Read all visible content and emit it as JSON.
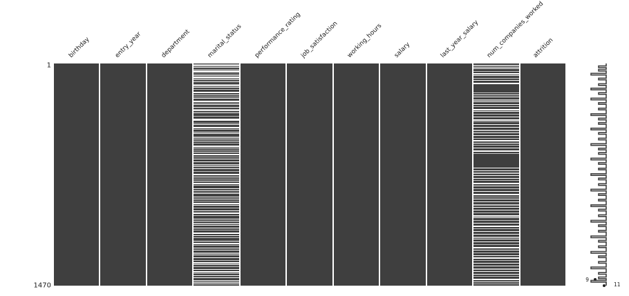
{
  "chart_data": {
    "type": "heatmap",
    "subtype": "missing-data-matrix",
    "title": "",
    "n_rows": 1470,
    "row_axis": {
      "top_tick": "1",
      "bottom_tick": "1470"
    },
    "columns": [
      "birthday",
      "entry_year",
      "department",
      "marital_status",
      "performance_rating",
      "job_satisfaction",
      "working_hours",
      "salary",
      "last_year_salary",
      "num_companies_worked",
      "attrition"
    ],
    "columns_with_missing": [
      "marital_status",
      "num_companies_worked"
    ],
    "colors": {
      "filled": "#3f3f3f",
      "missing": "#ffffff",
      "background": "#ffffff"
    },
    "missing_stripes": {
      "marital_status": [
        0.004,
        0.01,
        0.017,
        0.024,
        0.03,
        0.036,
        0.046,
        0.052,
        0.058,
        0.066,
        0.072,
        0.08,
        0.092,
        0.1,
        0.106,
        0.114,
        0.126,
        0.14,
        0.148,
        0.156,
        0.168,
        0.176,
        0.184,
        0.196,
        0.204,
        0.212,
        0.22,
        0.236,
        0.248,
        0.256,
        0.266,
        0.274,
        0.286,
        0.296,
        0.306,
        0.314,
        0.328,
        0.34,
        0.348,
        0.358,
        0.37,
        0.378,
        0.388,
        0.398,
        0.408,
        0.418,
        0.428,
        0.442,
        0.452,
        0.462,
        0.472,
        0.486,
        0.498,
        0.508,
        0.518,
        0.528,
        0.538,
        0.548,
        0.562,
        0.572,
        0.582,
        0.598,
        0.608,
        0.618,
        0.628,
        0.638,
        0.648,
        0.66,
        0.67,
        0.684,
        0.698,
        0.708,
        0.718,
        0.728,
        0.738,
        0.748,
        0.76,
        0.774,
        0.784,
        0.798,
        0.808,
        0.818,
        0.828,
        0.838,
        0.85,
        0.86,
        0.874,
        0.884,
        0.894,
        0.904,
        0.914,
        0.924,
        0.934,
        0.944,
        0.954,
        0.964,
        0.974,
        0.984,
        0.992
      ],
      "num_companies_worked": [
        0.006,
        0.014,
        0.022,
        0.034,
        0.044,
        0.054,
        0.064,
        0.074,
        0.086,
        0.13,
        0.14,
        0.15,
        0.16,
        0.172,
        0.182,
        0.192,
        0.204,
        0.214,
        0.226,
        0.238,
        0.25,
        0.262,
        0.274,
        0.286,
        0.298,
        0.31,
        0.322,
        0.334,
        0.346,
        0.358,
        0.368,
        0.38,
        0.392,
        0.404,
        0.47,
        0.48,
        0.492,
        0.504,
        0.514,
        0.526,
        0.538,
        0.55,
        0.562,
        0.574,
        0.586,
        0.598,
        0.61,
        0.622,
        0.634,
        0.646,
        0.658,
        0.67,
        0.682,
        0.694,
        0.706,
        0.718,
        0.73,
        0.742,
        0.754,
        0.766,
        0.778,
        0.79,
        0.802,
        0.814,
        0.826,
        0.838,
        0.85,
        0.862,
        0.874,
        0.886,
        0.898,
        0.91,
        0.922,
        0.934,
        0.946,
        0.958,
        0.97,
        0.982,
        0.992
      ]
    },
    "sparkline": {
      "description": "row completeness (number of non-missing columns per row)",
      "min_value_label": "9",
      "max_value_label": "11",
      "excursions": [
        [
          0.015,
          1
        ],
        [
          0.03,
          1
        ],
        [
          0.048,
          2
        ],
        [
          0.07,
          1
        ],
        [
          0.095,
          1
        ],
        [
          0.115,
          2
        ],
        [
          0.135,
          1
        ],
        [
          0.16,
          2
        ],
        [
          0.18,
          1
        ],
        [
          0.205,
          1
        ],
        [
          0.23,
          2
        ],
        [
          0.25,
          1
        ],
        [
          0.27,
          1
        ],
        [
          0.295,
          2
        ],
        [
          0.315,
          1
        ],
        [
          0.34,
          1
        ],
        [
          0.365,
          2
        ],
        [
          0.385,
          1
        ],
        [
          0.405,
          1
        ],
        [
          0.43,
          2
        ],
        [
          0.45,
          1
        ],
        [
          0.475,
          1
        ],
        [
          0.5,
          2
        ],
        [
          0.52,
          1
        ],
        [
          0.545,
          1
        ],
        [
          0.57,
          2
        ],
        [
          0.59,
          1
        ],
        [
          0.615,
          1
        ],
        [
          0.64,
          2
        ],
        [
          0.66,
          1
        ],
        [
          0.685,
          1
        ],
        [
          0.71,
          2
        ],
        [
          0.73,
          1
        ],
        [
          0.755,
          1
        ],
        [
          0.78,
          2
        ],
        [
          0.8,
          1
        ],
        [
          0.825,
          1
        ],
        [
          0.85,
          2
        ],
        [
          0.87,
          1
        ],
        [
          0.895,
          1
        ],
        [
          0.92,
          2
        ],
        [
          0.945,
          1
        ],
        [
          0.965,
          1
        ],
        [
          0.98,
          2
        ]
      ]
    }
  }
}
